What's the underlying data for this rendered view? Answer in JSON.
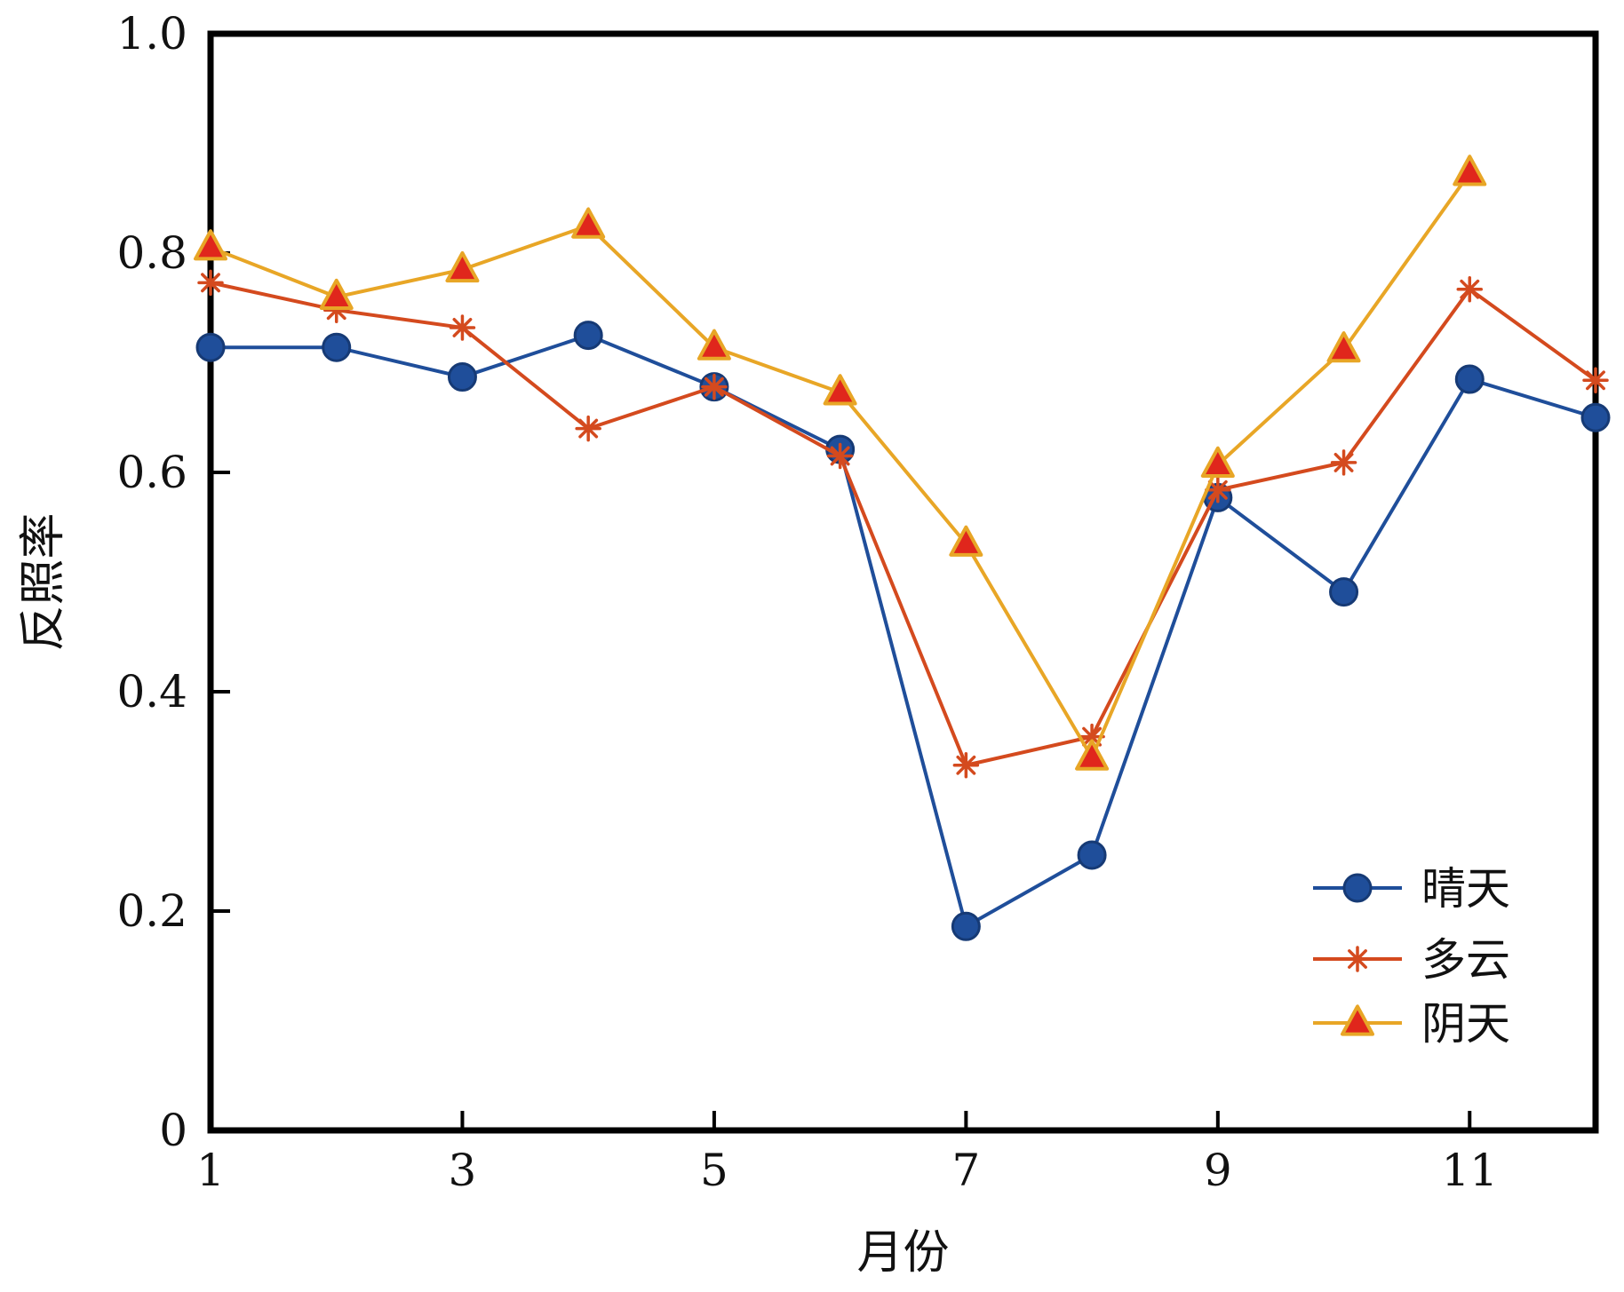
{
  "chart_data": {
    "type": "line",
    "xlabel": "月份",
    "ylabel": "反照率",
    "xlim": [
      1,
      12
    ],
    "ylim": [
      0,
      1.0
    ],
    "x_ticks": [
      "1",
      "3",
      "5",
      "7",
      "9",
      "11"
    ],
    "y_ticks": [
      "0",
      "0.2",
      "0.4",
      "0.6",
      "0.8",
      "1.0"
    ],
    "x": [
      1,
      2,
      3,
      4,
      5,
      6,
      7,
      8,
      9,
      10,
      11,
      12
    ],
    "legend_position": "bottom-right",
    "grid": false,
    "series": [
      {
        "name": "晴天",
        "color": "#1f4e9a",
        "marker": "circle",
        "values": [
          0.714,
          0.714,
          0.687,
          0.725,
          0.678,
          0.621,
          0.186,
          0.251,
          0.577,
          0.491,
          0.685,
          0.65
        ]
      },
      {
        "name": "多云",
        "color": "#d44a1e",
        "marker": "asterisk",
        "values": [
          0.773,
          0.748,
          0.732,
          0.64,
          0.678,
          0.615,
          0.333,
          0.359,
          0.584,
          0.609,
          0.767,
          0.684
        ]
      },
      {
        "name": "阴天",
        "color": "#e8a626",
        "marker_fill": "#e0261c",
        "marker": "triangle",
        "values": [
          0.805,
          0.76,
          0.785,
          0.825,
          0.714,
          0.673,
          0.535,
          0.34,
          0.607,
          0.712,
          0.873,
          null
        ]
      }
    ]
  }
}
